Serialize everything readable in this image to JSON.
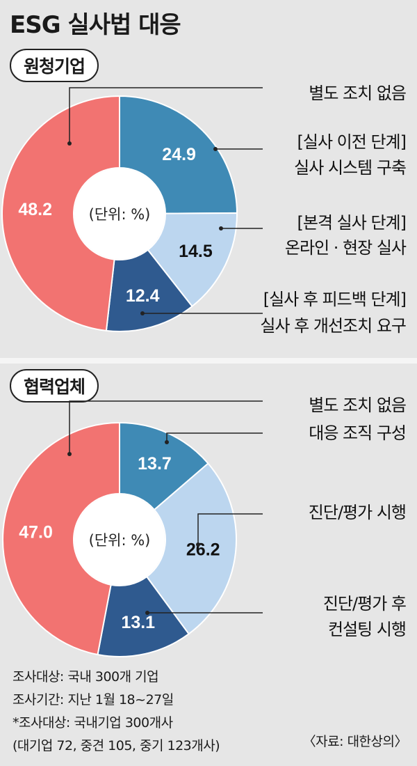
{
  "title": "ESG 실사법 대응",
  "colors": {
    "red": "#f27371",
    "teal": "#3f8ab5",
    "light": "#bcd6ef",
    "navy": "#2f5a8f"
  },
  "chart_data": [
    {
      "type": "pie",
      "title": "원청기업",
      "center_label": "(단위: %)",
      "slices": [
        {
          "name": "[실사 이전 단계]\n실사 시스템 구축",
          "value": 24.9,
          "label": "24.9",
          "color": "#3f8ab5"
        },
        {
          "name": "[본격 실사 단계]\n온라인 · 현장 실사",
          "value": 14.5,
          "label": "14.5",
          "color": "#bcd6ef"
        },
        {
          "name": "[실사 후 피드백 단계]\n실사 후 개선조치 요구",
          "value": 12.4,
          "label": "12.4",
          "color": "#2f5a8f"
        },
        {
          "name": "별도 조치 없음",
          "value": 48.2,
          "label": "48.2",
          "color": "#f27371"
        }
      ]
    },
    {
      "type": "pie",
      "title": "협력업체",
      "center_label": "(단위: %)",
      "slices": [
        {
          "name": "대응 조직 구성",
          "value": 13.7,
          "label": "13.7",
          "color": "#3f8ab5"
        },
        {
          "name": "진단/평가 시행",
          "value": 26.2,
          "label": "26.2",
          "color": "#bcd6ef"
        },
        {
          "name": "진단/평가 후\n컨설팅 시행",
          "value": 13.1,
          "label": "13.1",
          "color": "#2f5a8f"
        },
        {
          "name": "별도 조치 없음",
          "value": 47.0,
          "label": "47.0",
          "color": "#f27371"
        }
      ]
    }
  ],
  "notes": [
    "조사대상: 국내 300개 기업",
    "조사기간: 지난 1월 18~27일",
    "*조사대상: 국내기업 300개사",
    "(대기업 72, 중견 105, 중기 123개사)"
  ],
  "source": "〈자료: 대한상의〉"
}
